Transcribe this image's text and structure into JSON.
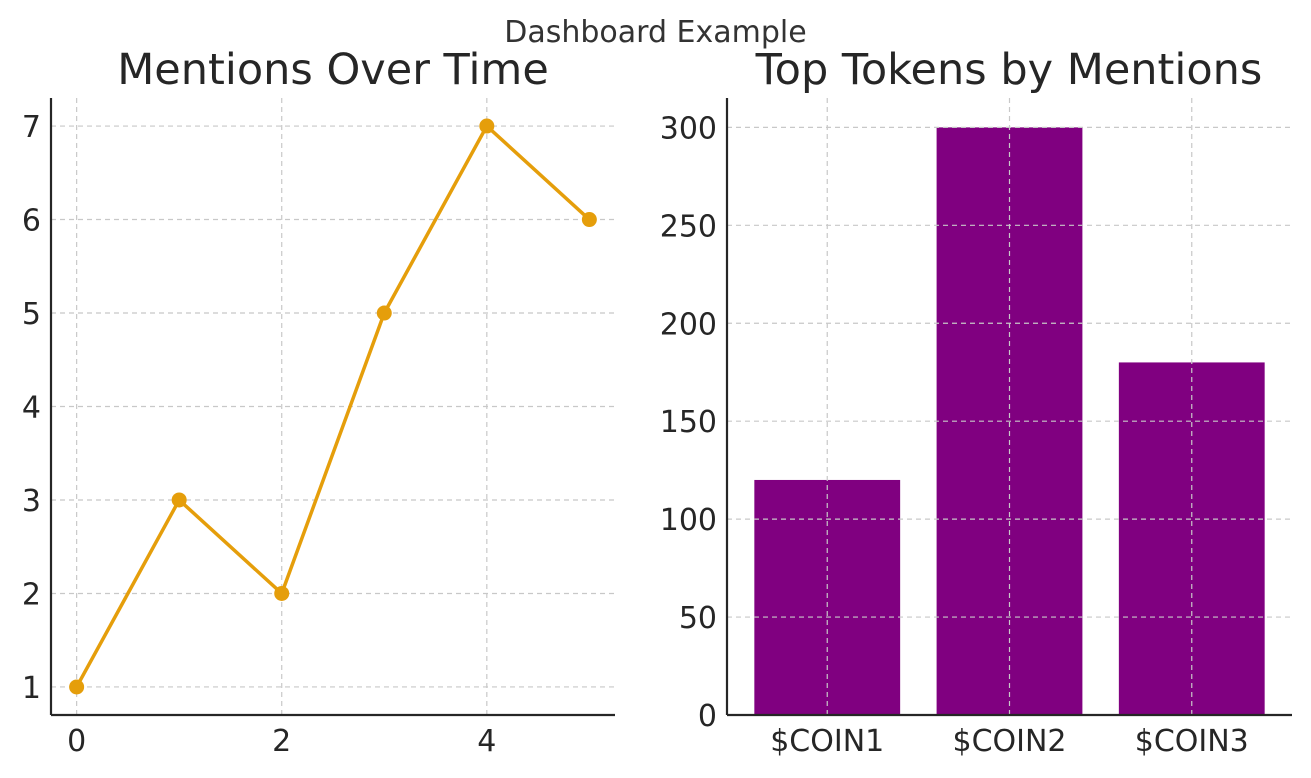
{
  "figure": {
    "suptitle": "Dashboard Example"
  },
  "chart_data": [
    {
      "type": "line",
      "title": "Mentions Over Time",
      "xlabel": "",
      "ylabel": "",
      "x": [
        0,
        1,
        2,
        3,
        4,
        5
      ],
      "series": [
        {
          "values": [
            1,
            3,
            2,
            5,
            7,
            6
          ],
          "color": "#E59E0B"
        }
      ],
      "xticks": [
        0,
        2,
        4
      ],
      "yticks": [
        1,
        2,
        3,
        4,
        5,
        6,
        7
      ],
      "xlim": [
        -0.25,
        5.25
      ],
      "ylim": [
        0.7,
        7.3
      ],
      "grid": true,
      "markers": true
    },
    {
      "type": "bar",
      "title": "Top Tokens by Mentions",
      "xlabel": "",
      "ylabel": "",
      "categories": [
        "$COIN1",
        "$COIN2",
        "$COIN3"
      ],
      "values": [
        120,
        300,
        180
      ],
      "color": "#800080",
      "yticks": [
        0,
        50,
        100,
        150,
        200,
        250,
        300
      ],
      "ylim": [
        0,
        315
      ],
      "grid": true
    }
  ]
}
